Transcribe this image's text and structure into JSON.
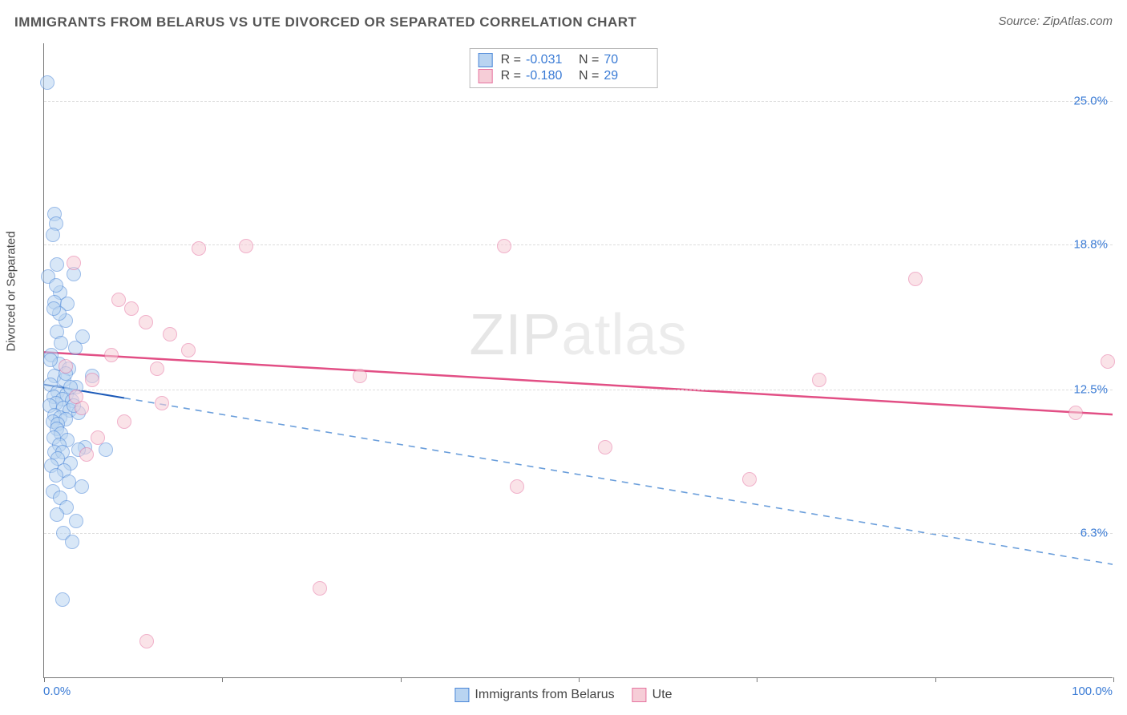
{
  "title": "IMMIGRANTS FROM BELARUS VS UTE DIVORCED OR SEPARATED CORRELATION CHART",
  "source": "Source: ZipAtlas.com",
  "watermark": {
    "bold": "ZIP",
    "thin": "atlas"
  },
  "chart": {
    "type": "scatter",
    "ylabel": "Divorced or Separated",
    "xlim": [
      0,
      100
    ],
    "ylim": [
      0,
      27.5
    ],
    "x_ticks": [
      0,
      16.67,
      33.33,
      50,
      66.67,
      83.33,
      100
    ],
    "x_tick_labels_shown": {
      "0": "0.0%",
      "100": "100.0%"
    },
    "y_gridlines": [
      6.3,
      12.5,
      18.8,
      25.0
    ],
    "y_tick_labels": [
      "6.3%",
      "12.5%",
      "18.8%",
      "25.0%"
    ],
    "background_color": "#ffffff",
    "grid_color": "#dddddd",
    "axis_color": "#777777",
    "tick_label_color": "#3a7bd5",
    "label_fontsize": 15,
    "title_fontsize": 17,
    "marker_radius": 9,
    "marker_border_width": 1.5,
    "series": [
      {
        "name": "Immigrants from Belarus",
        "fill_color": "#b9d4f1",
        "border_color": "#4a86d8",
        "fill_opacity": 0.55,
        "R": "-0.031",
        "N": "70",
        "trend": {
          "y_at_x0": 12.7,
          "y_at_x100": 4.9,
          "solid_until_x": 7.5,
          "solid_color": "#1b59b8",
          "dash_color": "#6a9edb",
          "width": 2
        },
        "points": [
          [
            0.3,
            25.8
          ],
          [
            1.0,
            20.1
          ],
          [
            1.1,
            19.7
          ],
          [
            0.8,
            19.2
          ],
          [
            1.2,
            17.9
          ],
          [
            0.4,
            17.4
          ],
          [
            2.8,
            17.5
          ],
          [
            1.5,
            16.7
          ],
          [
            1.0,
            16.3
          ],
          [
            2.2,
            16.2
          ],
          [
            2.0,
            15.5
          ],
          [
            1.2,
            15.0
          ],
          [
            1.6,
            14.5
          ],
          [
            2.9,
            14.3
          ],
          [
            0.7,
            14.0
          ],
          [
            1.4,
            13.6
          ],
          [
            2.3,
            13.4
          ],
          [
            1.0,
            13.1
          ],
          [
            1.9,
            12.9
          ],
          [
            0.6,
            12.7
          ],
          [
            3.0,
            12.6
          ],
          [
            1.3,
            12.4
          ],
          [
            2.1,
            12.3
          ],
          [
            0.9,
            12.2
          ],
          [
            1.7,
            12.1
          ],
          [
            2.6,
            12.0
          ],
          [
            1.1,
            11.9
          ],
          [
            0.5,
            11.8
          ],
          [
            1.8,
            11.7
          ],
          [
            2.4,
            11.6
          ],
          [
            3.2,
            11.5
          ],
          [
            1.0,
            11.4
          ],
          [
            1.5,
            11.3
          ],
          [
            2.0,
            11.2
          ],
          [
            0.8,
            11.1
          ],
          [
            1.3,
            11.0
          ],
          [
            2.5,
            12.6
          ],
          [
            1.2,
            10.8
          ],
          [
            4.5,
            13.1
          ],
          [
            2.8,
            11.8
          ],
          [
            1.6,
            10.6
          ],
          [
            0.9,
            10.4
          ],
          [
            2.2,
            10.3
          ],
          [
            1.4,
            10.1
          ],
          [
            3.8,
            10.0
          ],
          [
            1.0,
            9.8
          ],
          [
            1.7,
            9.8
          ],
          [
            3.2,
            9.9
          ],
          [
            1.3,
            9.5
          ],
          [
            2.5,
            9.3
          ],
          [
            0.7,
            9.2
          ],
          [
            1.9,
            9.0
          ],
          [
            1.1,
            8.8
          ],
          [
            2.3,
            8.5
          ],
          [
            3.5,
            8.3
          ],
          [
            0.8,
            8.1
          ],
          [
            5.8,
            9.9
          ],
          [
            1.5,
            7.8
          ],
          [
            2.1,
            7.4
          ],
          [
            1.2,
            7.1
          ],
          [
            3.0,
            6.8
          ],
          [
            1.8,
            6.3
          ],
          [
            2.6,
            5.9
          ],
          [
            1.4,
            15.8
          ],
          [
            0.6,
            13.8
          ],
          [
            2.0,
            13.2
          ],
          [
            1.7,
            3.4
          ],
          [
            0.9,
            16.0
          ],
          [
            3.6,
            14.8
          ],
          [
            1.1,
            17.0
          ]
        ]
      },
      {
        "name": "Ute",
        "fill_color": "#f6cdd7",
        "border_color": "#e673a0",
        "fill_opacity": 0.55,
        "R": "-0.180",
        "N": "29",
        "trend": {
          "y_at_x0": 14.1,
          "y_at_x100": 11.4,
          "solid_until_x": 100,
          "solid_color": "#e24f85",
          "dash_color": "#e24f85",
          "width": 2.5
        },
        "points": [
          [
            2.8,
            18.0
          ],
          [
            7.0,
            16.4
          ],
          [
            8.2,
            16.0
          ],
          [
            9.5,
            15.4
          ],
          [
            6.3,
            14.0
          ],
          [
            14.5,
            18.6
          ],
          [
            11.8,
            14.9
          ],
          [
            18.9,
            18.7
          ],
          [
            10.6,
            13.4
          ],
          [
            4.5,
            12.9
          ],
          [
            13.5,
            14.2
          ],
          [
            3.5,
            11.7
          ],
          [
            5.0,
            10.4
          ],
          [
            7.5,
            11.1
          ],
          [
            4.0,
            9.7
          ],
          [
            29.5,
            13.1
          ],
          [
            9.6,
            1.6
          ],
          [
            25.8,
            3.9
          ],
          [
            43.0,
            18.7
          ],
          [
            44.2,
            8.3
          ],
          [
            52.5,
            10.0
          ],
          [
            66.0,
            8.6
          ],
          [
            72.5,
            12.9
          ],
          [
            81.5,
            17.3
          ],
          [
            96.5,
            11.5
          ],
          [
            99.5,
            13.7
          ],
          [
            3.0,
            12.2
          ],
          [
            2.0,
            13.5
          ],
          [
            11.0,
            11.9
          ]
        ]
      }
    ]
  },
  "legend_top": [
    {
      "series_index": 0,
      "R_label": "R =",
      "N_label": "N ="
    },
    {
      "series_index": 1,
      "R_label": "R =",
      "N_label": "N ="
    }
  ],
  "legend_bottom": [
    {
      "series_index": 0
    },
    {
      "series_index": 1
    }
  ]
}
